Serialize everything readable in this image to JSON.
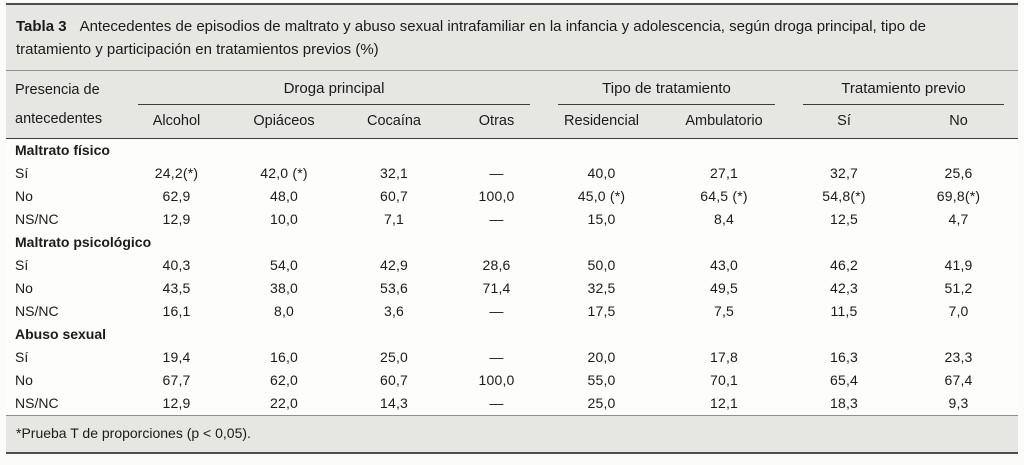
{
  "caption": {
    "label": "Tabla 3",
    "text": "Antecedentes de episodios de maltrato y abuso sexual intrafamiliar en la infancia y adolescencia, según droga principal, tipo de tratamiento y participación en tratamientos previos (%)"
  },
  "table": {
    "stub_header_line1": "Presencia de",
    "stub_header_line2": "antecedentes",
    "groups": [
      {
        "label": "Droga principal",
        "columns": [
          "Alcohol",
          "Opiáceos",
          "Cocaína",
          "Otras"
        ]
      },
      {
        "label": "Tipo de tratamiento",
        "columns": [
          "Residencial",
          "Ambulatorio"
        ]
      },
      {
        "label": "Tratamiento previo",
        "columns": [
          "Sí",
          "No"
        ]
      }
    ],
    "sections": [
      {
        "title": "Maltrato físico",
        "rows": [
          {
            "label": "Sí",
            "values": [
              "24,2(*)",
              "42,0 (*)",
              "32,1",
              "—",
              "40,0",
              "27,1",
              "32,7",
              "25,6"
            ]
          },
          {
            "label": "No",
            "values": [
              "62,9",
              "48,0",
              "60,7",
              "100,0",
              "45,0 (*)",
              "64,5 (*)",
              "54,8(*)",
              "69,8(*)"
            ]
          },
          {
            "label": "NS/NC",
            "values": [
              "12,9",
              "10,0",
              "7,1",
              "—",
              "15,0",
              "8,4",
              "12,5",
              "4,7"
            ]
          }
        ]
      },
      {
        "title": "Maltrato psicológico",
        "rows": [
          {
            "label": "Sí",
            "values": [
              "40,3",
              "54,0",
              "42,9",
              "28,6",
              "50,0",
              "43,0",
              "46,2",
              "41,9"
            ]
          },
          {
            "label": "No",
            "values": [
              "43,5",
              "38,0",
              "53,6",
              "71,4",
              "32,5",
              "49,5",
              "42,3",
              "51,2"
            ]
          },
          {
            "label": "NS/NC",
            "values": [
              "16,1",
              "8,0",
              "3,6",
              "—",
              "17,5",
              "7,5",
              "11,5",
              "7,0"
            ]
          }
        ]
      },
      {
        "title": "Abuso sexual",
        "rows": [
          {
            "label": "Sí",
            "values": [
              "19,4",
              "16,0",
              "25,0",
              "—",
              "20,0",
              "17,8",
              "16,3",
              "23,3"
            ]
          },
          {
            "label": "No",
            "values": [
              "67,7",
              "62,0",
              "60,7",
              "100,0",
              "55,0",
              "70,1",
              "65,4",
              "67,4"
            ]
          },
          {
            "label": "NS/NC",
            "values": [
              "12,9",
              "22,0",
              "14,3",
              "—",
              "25,0",
              "12,1",
              "18,3",
              "9,3"
            ]
          }
        ]
      }
    ]
  },
  "footnote": "*Prueba T de proporciones (p < 0,05)."
}
